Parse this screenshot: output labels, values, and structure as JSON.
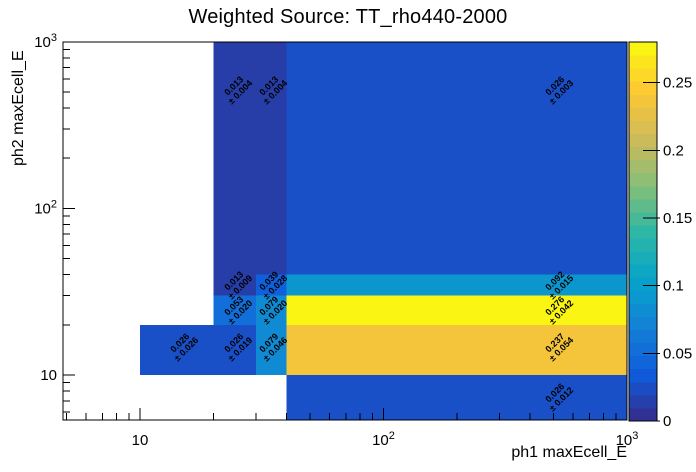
{
  "chart_data": {
    "type": "heatmap",
    "title": "Weighted Source: TT_rho440-2000",
    "xlabel": "ph1 maxEcell_E",
    "ylabel": "ph2 maxEcell_E",
    "x_scale": "log",
    "y_scale": "log",
    "x_range": [
      4.8,
      1000
    ],
    "y_range": [
      5.4,
      1000
    ],
    "z_range": [
      0,
      0.28
    ],
    "grid": false,
    "legend_position": "right-palette-bar",
    "x_ticks": [
      {
        "v": 10,
        "label": "10",
        "sup": ""
      },
      {
        "v": 100,
        "label": "10",
        "sup": "2"
      },
      {
        "v": 1000,
        "label": "10",
        "sup": "3"
      }
    ],
    "y_ticks": [
      {
        "v": 10,
        "label": "10",
        "sup": ""
      },
      {
        "v": 100,
        "label": "10",
        "sup": "2"
      },
      {
        "v": 1000,
        "label": "10",
        "sup": "3"
      }
    ],
    "x_minor_ticks": [
      5,
      6,
      7,
      8,
      9,
      20,
      30,
      40,
      50,
      60,
      70,
      80,
      90,
      200,
      300,
      400,
      500,
      600,
      700,
      800,
      900
    ],
    "y_minor_ticks": [
      6,
      7,
      8,
      9,
      20,
      30,
      40,
      50,
      60,
      70,
      80,
      90,
      200,
      300,
      400,
      500,
      600,
      700,
      800,
      900
    ],
    "z_ticks": [
      {
        "v": 0,
        "label": "0"
      },
      {
        "v": 0.05,
        "label": "0.05"
      },
      {
        "v": 0.1,
        "label": "0.1"
      },
      {
        "v": 0.15,
        "label": "0.15"
      },
      {
        "v": 0.2,
        "label": "0.2"
      },
      {
        "v": 0.25,
        "label": "0.25"
      }
    ],
    "palette_name": "root-kBird",
    "palette_stops": [
      "#352a87",
      "#0f5cdd",
      "#1481d6",
      "#06a4ca",
      "#2eb7a4",
      "#87bf77",
      "#d1bb59",
      "#fec832",
      "#f9fb0e"
    ],
    "cells": [
      {
        "x": [
          20,
          30
        ],
        "y": [
          40,
          1000
        ],
        "value": 0.013,
        "error": 0.004
      },
      {
        "x": [
          30,
          40
        ],
        "y": [
          40,
          1000
        ],
        "value": 0.013,
        "error": 0.004
      },
      {
        "x": [
          40,
          1000
        ],
        "y": [
          40,
          1000
        ],
        "value": 0.026,
        "error": 0.003
      },
      {
        "x": [
          20,
          30
        ],
        "y": [
          30,
          40
        ],
        "value": 0.013,
        "error": 0.009
      },
      {
        "x": [
          30,
          40
        ],
        "y": [
          30,
          40
        ],
        "value": 0.039,
        "error": 0.028
      },
      {
        "x": [
          40,
          1000
        ],
        "y": [
          30,
          40
        ],
        "value": 0.092,
        "error": 0.015
      },
      {
        "x": [
          20,
          30
        ],
        "y": [
          20,
          30
        ],
        "value": 0.053,
        "error": 0.02
      },
      {
        "x": [
          30,
          40
        ],
        "y": [
          20,
          30
        ],
        "value": 0.079,
        "error": 0.02
      },
      {
        "x": [
          40,
          1000
        ],
        "y": [
          20,
          30
        ],
        "value": 0.276,
        "error": 0.042
      },
      {
        "x": [
          10,
          20
        ],
        "y": [
          10,
          20
        ],
        "value": 0.026,
        "error": 0.026
      },
      {
        "x": [
          20,
          30
        ],
        "y": [
          10,
          20
        ],
        "value": 0.026,
        "error": 0.019
      },
      {
        "x": [
          30,
          40
        ],
        "y": [
          10,
          20
        ],
        "value": 0.079,
        "error": 0.046
      },
      {
        "x": [
          40,
          1000
        ],
        "y": [
          10,
          20
        ],
        "value": 0.237,
        "error": 0.054
      },
      {
        "x": [
          40,
          1000
        ],
        "y": [
          5,
          10
        ],
        "value": 0.026,
        "error": 0.012
      }
    ],
    "plus_minus_symbol": "±"
  }
}
